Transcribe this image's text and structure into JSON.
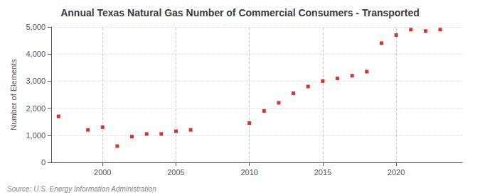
{
  "chart_data": {
    "type": "scatter",
    "title": "Annual Texas Natural Gas Number of Commercial Consumers - Transported",
    "ylabel": "Number of Elements",
    "annotations": [
      "Source: U.S. Energy Information Administration"
    ],
    "x": [
      1997,
      1999,
      2000,
      2001,
      2002,
      2003,
      2004,
      2005,
      2006,
      2010,
      2011,
      2012,
      2013,
      2014,
      2015,
      2016,
      2017,
      2018,
      2019,
      2020,
      2021,
      2022,
      2023
    ],
    "values": [
      1700,
      1200,
      1300,
      600,
      950,
      1050,
      1050,
      1150,
      1200,
      1450,
      1900,
      2200,
      2550,
      2800,
      3000,
      3100,
      3200,
      3350,
      4400,
      4700,
      4900,
      4850,
      4900
    ],
    "color": "#cc0000",
    "marker": "square",
    "xlim": [
      1996.5,
      2024.5
    ],
    "xticks": [
      2000,
      2005,
      2010,
      2015,
      2020
    ],
    "ylim": [
      0,
      5000
    ],
    "yticks": [
      0,
      {
        "value": 1000,
        "label": "1,000"
      },
      {
        "value": 2000,
        "label": "2,000"
      },
      {
        "value": 3000,
        "label": "3,000"
      },
      {
        "value": 4000,
        "label": "4,000"
      },
      {
        "value": 5000,
        "label": "5,000"
      }
    ],
    "grid": true
  }
}
